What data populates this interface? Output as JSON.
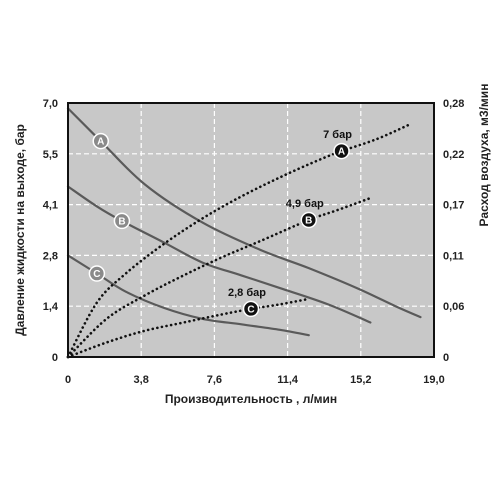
{
  "chart_data": {
    "type": "line",
    "xlabel": "Производительность , л/мин",
    "ylabel_left": "Давление жидкости на выходе, бар",
    "ylabel_right": "Расход воздуха, м3/мин",
    "x_ticks": [
      "0",
      "3,8",
      "7,6",
      "11,4",
      "15,2",
      "19,0"
    ],
    "y_left_ticks": [
      "0",
      "1,4",
      "2,8",
      "4,1",
      "5,5",
      "7,0"
    ],
    "y_right_ticks": [
      "0",
      "0,06",
      "0,11",
      "0,17",
      "0,22",
      "0,28"
    ],
    "xlim": [
      0,
      19.0
    ],
    "ylim_left": [
      0,
      7.0
    ],
    "ylim_right": [
      0,
      0.28
    ],
    "grid": true,
    "colors": {
      "plot_bg": "#c8c8c8",
      "pressure_line": "#5a5a5a",
      "air_line": "#111111",
      "frame": "#111111"
    },
    "pressure_series": [
      {
        "name": "A",
        "marker_at": 1.7,
        "x": [
          0,
          1.7,
          4.0,
          7.0,
          10.0,
          12.5,
          15.0,
          17.0,
          18.3
        ],
        "y": [
          6.85,
          5.95,
          4.75,
          3.7,
          2.95,
          2.45,
          1.9,
          1.4,
          1.1
        ]
      },
      {
        "name": "B",
        "marker_at": 2.8,
        "x": [
          0,
          1.5,
          2.8,
          5.0,
          7.0,
          9.0,
          11.0,
          13.5,
          15.7
        ],
        "y": [
          4.7,
          4.15,
          3.75,
          3.15,
          2.6,
          2.25,
          1.9,
          1.45,
          0.95
        ]
      },
      {
        "name": "C",
        "marker_at": 1.5,
        "x": [
          0,
          1.5,
          3.0,
          5.0,
          7.0,
          9.0,
          11.0,
          12.5
        ],
        "y": [
          2.8,
          2.3,
          1.8,
          1.35,
          1.05,
          0.9,
          0.75,
          0.6
        ]
      }
    ],
    "air_series": [
      {
        "name": "A",
        "label": "7 бар",
        "marker_at": 14.2,
        "x": [
          0,
          1.5,
          3.0,
          5.0,
          7.0,
          9.0,
          11.0,
          13.0,
          14.2,
          16.0,
          17.8
        ],
        "y": [
          0,
          0.06,
          0.092,
          0.125,
          0.153,
          0.177,
          0.198,
          0.217,
          0.227,
          0.24,
          0.257
        ]
      },
      {
        "name": "B",
        "label": "4,9 бар",
        "marker_at": 12.5,
        "x": [
          0,
          2.0,
          4.0,
          6.0,
          8.0,
          10.0,
          12.5,
          14.0,
          15.8
        ],
        "y": [
          0,
          0.042,
          0.068,
          0.09,
          0.11,
          0.128,
          0.151,
          0.162,
          0.176
        ]
      },
      {
        "name": "C",
        "label": "2,8 бар",
        "marker_at": 9.5,
        "x": [
          0,
          2.0,
          4.0,
          6.0,
          8.0,
          9.5,
          11.0,
          12.5
        ],
        "y": [
          0,
          0.016,
          0.029,
          0.038,
          0.047,
          0.053,
          0.058,
          0.064
        ]
      }
    ]
  }
}
